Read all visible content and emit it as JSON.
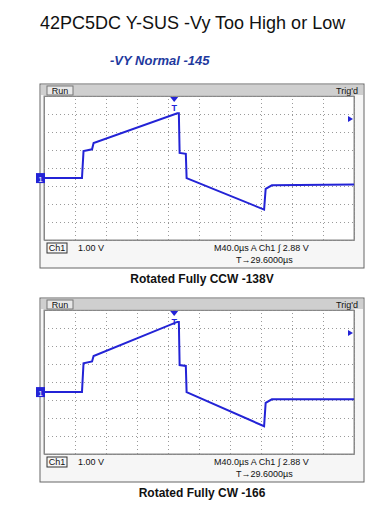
{
  "header": {
    "title": "42PC5DC Y-SUS -Vy Too High or Low",
    "subtitle": "-VY  Normal -145"
  },
  "chart_data": [
    {
      "type": "line",
      "title": "Rotated Fully CCW -138V",
      "annotations": [
        "Run",
        "Trig'd",
        "T",
        "1",
        "Ch1",
        "1.00 V",
        "M40.0µs A Ch1 ∫ 2.88 V",
        "T→29.6000µs"
      ],
      "x": [
        0,
        49,
        51,
        62,
        64,
        172,
        174,
        175,
        183,
        184,
        284,
        286,
        294,
        400
      ],
      "values": [
        0,
        0,
        1.5,
        1.6,
        1.95,
        3.6,
        3.6,
        1.4,
        1.35,
        0,
        -1.75,
        -0.6,
        -0.4,
        -0.35
      ],
      "color": "#2323d6",
      "xlim": [
        0,
        400
      ],
      "ylim": [
        -3.44,
        4.56
      ],
      "xticks": [
        0,
        40,
        80,
        120,
        160,
        200,
        240,
        280,
        320,
        360,
        400
      ],
      "yticks": [
        -3.44,
        -2.44,
        -1.44,
        -0.44,
        0.56,
        1.56,
        2.56,
        3.56,
        4.56
      ],
      "grid": true,
      "tick_labels": false
    },
    {
      "type": "line",
      "title": "Rotated Fully CW -166",
      "annotations": [
        "Run",
        "Trig'd",
        "T",
        "1",
        "Ch1",
        "1.00 V",
        "M40.0µs A Ch1 ∫ 2.88 V",
        "T→29.6000µs"
      ],
      "x": [
        0,
        49,
        51,
        62,
        64,
        172,
        174,
        175,
        183,
        184,
        284,
        286,
        294,
        400
      ],
      "values": [
        0,
        0,
        1.6,
        1.7,
        2.0,
        3.9,
        3.9,
        1.5,
        1.45,
        0,
        -1.9,
        -0.6,
        -0.4,
        -0.4
      ],
      "color": "#2323d6",
      "xlim": [
        0,
        400
      ],
      "ylim": [
        -3.44,
        4.56
      ],
      "xticks": [
        0,
        40,
        80,
        120,
        160,
        200,
        240,
        280,
        320,
        360,
        400
      ],
      "yticks": [
        -3.44,
        -2.44,
        -1.44,
        -0.44,
        0.56,
        1.56,
        2.56,
        3.56,
        4.56
      ],
      "grid": true,
      "tick_labels": false
    }
  ]
}
